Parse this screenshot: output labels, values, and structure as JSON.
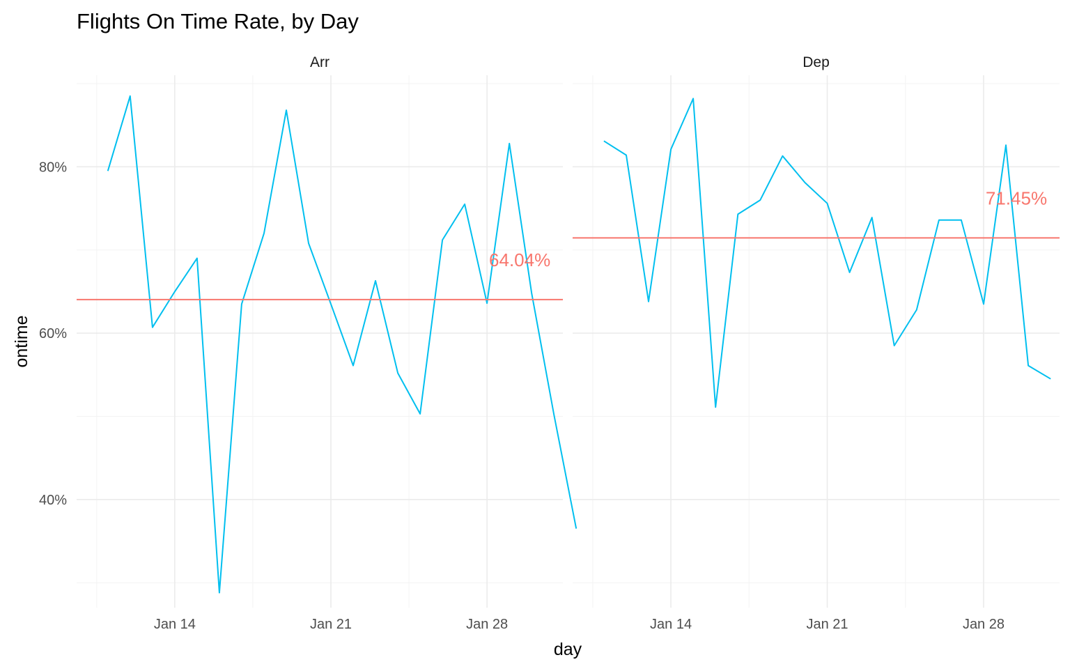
{
  "chart_data": {
    "type": "line",
    "title": "Flights On Time Rate, by Day",
    "xlabel": "day",
    "ylabel": "ontime",
    "x_ticks": [
      "Jan 14",
      "Jan 21",
      "Jan 28"
    ],
    "y_ticks": [
      "40%",
      "60%",
      "80%"
    ],
    "ylim": [
      0.27,
      0.91
    ],
    "xlim_day": [
      9.6,
      31.4
    ],
    "grid": true,
    "colors": {
      "line": "#00BFEF",
      "mean": "#F8766D"
    },
    "panels": [
      {
        "name": "Arr",
        "mean": 0.6404,
        "mean_label": "64.04%",
        "days": [
          11,
          12,
          13,
          14,
          15,
          16,
          17,
          18,
          19,
          20,
          21,
          22,
          23,
          24,
          25,
          26,
          27,
          28,
          29,
          30,
          31,
          32
        ],
        "values": [
          0.795,
          0.885,
          0.607,
          0.65,
          0.69,
          0.288,
          0.635,
          0.72,
          0.868,
          0.708,
          0.635,
          0.561,
          0.663,
          0.552,
          0.503,
          0.712,
          0.755,
          0.636,
          0.828,
          0.648,
          0.502,
          0.365
        ]
      },
      {
        "name": "Dep",
        "mean": 0.7145,
        "mean_label": "71.45%",
        "days": [
          11,
          12,
          13,
          14,
          15,
          16,
          17,
          18,
          19,
          20,
          21,
          22,
          23,
          24,
          25,
          26,
          27,
          28,
          29,
          30,
          31,
          32
        ],
        "values": [
          0.831,
          0.814,
          0.638,
          0.821,
          0.882,
          0.511,
          0.743,
          0.76,
          0.813,
          0.781,
          0.756,
          0.673,
          0.739,
          0.585,
          0.628,
          0.736,
          0.736,
          0.635,
          0.826,
          0.561,
          0.545,
          null
        ]
      }
    ]
  }
}
